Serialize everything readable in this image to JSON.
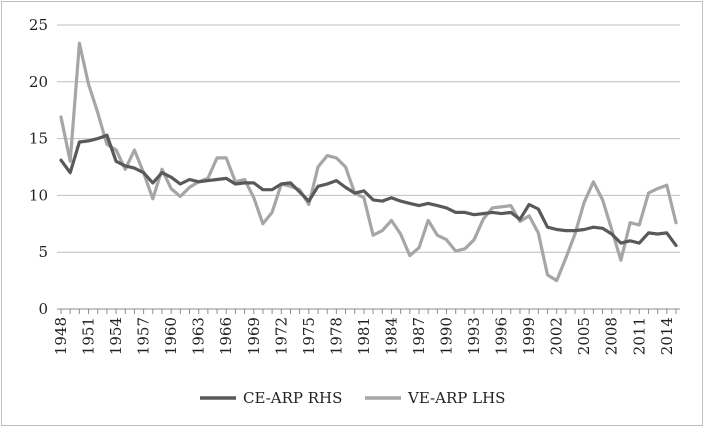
{
  "chart_data": {
    "type": "line",
    "title": "",
    "xlabel": "",
    "ylabel": "",
    "ylim": [
      0,
      25
    ],
    "yticks": [
      0,
      5,
      10,
      15,
      20,
      25
    ],
    "grid": "horizontal",
    "legend_position": "bottom",
    "x": [
      1948,
      1949,
      1950,
      1951,
      1952,
      1953,
      1954,
      1955,
      1956,
      1957,
      1958,
      1959,
      1960,
      1961,
      1962,
      1963,
      1964,
      1965,
      1966,
      1967,
      1968,
      1969,
      1970,
      1971,
      1972,
      1973,
      1974,
      1975,
      1976,
      1977,
      1978,
      1979,
      1980,
      1981,
      1982,
      1983,
      1984,
      1985,
      1986,
      1987,
      1988,
      1989,
      1990,
      1991,
      1992,
      1993,
      1994,
      1995,
      1996,
      1997,
      1998,
      1999,
      2000,
      2001,
      2002,
      2003,
      2004,
      2005,
      2006,
      2007,
      2008,
      2009,
      2010,
      2011,
      2012,
      2013,
      2014,
      2015
    ],
    "xtick_labels": [
      "1948",
      "1951",
      "1954",
      "1957",
      "1960",
      "1963",
      "1966",
      "1969",
      "1972",
      "1975",
      "1978",
      "1981",
      "1984",
      "1987",
      "1990",
      "1993",
      "1996",
      "1999",
      "2002",
      "2005",
      "2008",
      "2011",
      "2014"
    ],
    "series": [
      {
        "name": "CE-ARP RHS",
        "color": "#595959",
        "values": [
          13.1,
          12.0,
          14.7,
          14.8,
          15.0,
          15.3,
          13.0,
          12.6,
          12.4,
          12.0,
          11.1,
          12.0,
          11.6,
          11.0,
          11.4,
          11.2,
          11.3,
          11.4,
          11.5,
          11.0,
          11.1,
          11.1,
          10.5,
          10.5,
          11.0,
          11.1,
          10.3,
          9.5,
          10.8,
          11.0,
          11.3,
          10.7,
          10.2,
          10.4,
          9.6,
          9.5,
          9.8,
          9.5,
          9.3,
          9.1,
          9.3,
          9.1,
          8.9,
          8.5,
          8.5,
          8.3,
          8.4,
          8.5,
          8.4,
          8.5,
          7.9,
          9.2,
          8.8,
          7.2,
          7.0,
          6.9,
          6.9,
          7.0,
          7.2,
          7.1,
          6.6,
          5.8,
          6.0,
          5.8,
          6.7,
          6.6,
          6.7,
          5.6
        ]
      },
      {
        "name": "VE-ARP LHS",
        "color": "#a6a6a6",
        "values": [
          16.9,
          13.0,
          23.4,
          19.8,
          17.3,
          14.5,
          14.0,
          12.3,
          14.0,
          12.0,
          9.7,
          12.3,
          10.6,
          9.9,
          10.7,
          11.2,
          11.5,
          13.3,
          13.3,
          11.2,
          11.4,
          9.8,
          7.5,
          8.5,
          11.0,
          10.8,
          10.5,
          9.2,
          12.5,
          13.5,
          13.3,
          12.5,
          10.2,
          9.8,
          6.5,
          6.9,
          7.8,
          6.6,
          4.7,
          5.4,
          7.8,
          6.5,
          6.1,
          5.1,
          5.3,
          6.1,
          7.9,
          8.9,
          9.0,
          9.1,
          7.7,
          8.2,
          6.7,
          3.0,
          2.5,
          4.5,
          6.6,
          9.4,
          11.2,
          9.6,
          7.0,
          4.3,
          7.6,
          7.4,
          10.2,
          10.6,
          10.9,
          7.6
        ]
      }
    ]
  }
}
